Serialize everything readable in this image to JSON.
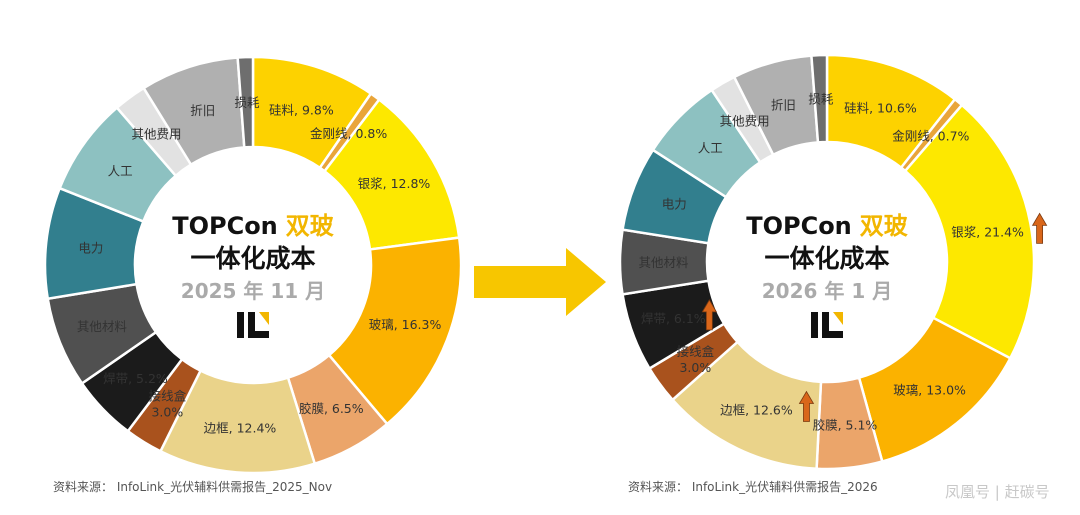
{
  "colors": {
    "highlight": "#f2b600",
    "title": "#111111",
    "date": "#aaaaaa",
    "arrow": "#f7c600",
    "up_arrow": "#d9661a"
  },
  "logo": "IL logo (lettermark)",
  "watermark": "凤凰号 | 赶碳号",
  "chart_data": [
    {
      "type": "pie",
      "donut": true,
      "title_part1": "TOPCon",
      "title_part2": "双玻",
      "title_line2": "一体化成本",
      "date": "2025 年 11 月",
      "source": "资料来源： InfoLink_光伏辅料供需报告_2025_Nov",
      "slices": [
        {
          "name": "硅料",
          "value": 9.8,
          "label": "硅料, 9.8%",
          "color": "#fdd200"
        },
        {
          "name": "金刚线",
          "value": 0.8,
          "label": "金刚线, 0.8%",
          "color": "#e9a53a"
        },
        {
          "name": "银浆",
          "value": 12.8,
          "label": "银浆, 12.8%",
          "color": "#fde800"
        },
        {
          "name": "玻璃",
          "value": 16.3,
          "label": "玻璃, 16.3%",
          "color": "#fbb200"
        },
        {
          "name": "胶膜",
          "value": 6.5,
          "label": "胶膜, 6.5%",
          "color": "#eba56a"
        },
        {
          "name": "边框",
          "value": 12.4,
          "label": "边框, 12.4%",
          "color": "#ead38a"
        },
        {
          "name": "接线盒",
          "value": 3.0,
          "label": "接线盒",
          "label2": "3.0%",
          "color": "#a9521d"
        },
        {
          "name": "焊带",
          "value": 5.2,
          "label": "焊带, 5.2%",
          "color": "#1b1b1b"
        },
        {
          "name": "其他材料",
          "value": 7.2,
          "label": "其他材料",
          "color": "#505050"
        },
        {
          "name": "电力",
          "value": 8.8,
          "label": "电力",
          "color": "#327f8e"
        },
        {
          "name": "人工",
          "value": 7.8,
          "label": "人工",
          "color": "#8dc1c1"
        },
        {
          "name": "其他费用",
          "value": 2.6,
          "label": "其他费用",
          "color": "#e2e2e2"
        },
        {
          "name": "折旧",
          "value": 7.8,
          "label": "折旧",
          "color": "#b0b0b0"
        },
        {
          "name": "损耗",
          "value": 1.2,
          "label": "损耗",
          "color": "#6e6e6e"
        }
      ]
    },
    {
      "type": "pie",
      "donut": true,
      "title_part1": "TOPCon",
      "title_part2": "双玻",
      "title_line2": "一体化成本",
      "date": "2026 年 1 月",
      "source": "资料来源： InfoLink_光伏辅料供需报告_2026",
      "slices": [
        {
          "name": "硅料",
          "value": 10.6,
          "label": "硅料, 10.6%",
          "color": "#fdd200"
        },
        {
          "name": "金刚线",
          "value": 0.7,
          "label": "金刚线, 0.7%",
          "color": "#e9a53a"
        },
        {
          "name": "银浆",
          "value": 21.4,
          "label": "银浆, 21.4%",
          "color": "#fde800",
          "up": true
        },
        {
          "name": "玻璃",
          "value": 13.0,
          "label": "玻璃, 13.0%",
          "color": "#fbb200"
        },
        {
          "name": "胶膜",
          "value": 5.1,
          "label": "胶膜, 5.1%",
          "color": "#eba56a"
        },
        {
          "name": "边框",
          "value": 12.6,
          "label": "边框, 12.6%",
          "color": "#ead38a",
          "up": true
        },
        {
          "name": "接线盒",
          "value": 3.0,
          "label": "接线盒",
          "label2": "3.0%",
          "color": "#a9521d"
        },
        {
          "name": "焊带",
          "value": 6.1,
          "label": "焊带, 6.1%",
          "color": "#1b1b1b",
          "up": true
        },
        {
          "name": "其他材料",
          "value": 5.0,
          "label": "其他材料",
          "color": "#505050"
        },
        {
          "name": "电力",
          "value": 6.6,
          "label": "电力",
          "color": "#327f8e"
        },
        {
          "name": "人工",
          "value": 6.5,
          "label": "人工",
          "color": "#8dc1c1"
        },
        {
          "name": "其他费用",
          "value": 2.0,
          "label": "其他费用",
          "color": "#e2e2e2"
        },
        {
          "name": "折旧",
          "value": 6.2,
          "label": "折旧",
          "color": "#b0b0b0"
        },
        {
          "name": "损耗",
          "value": 1.2,
          "label": "损耗",
          "color": "#6e6e6e"
        }
      ]
    }
  ]
}
